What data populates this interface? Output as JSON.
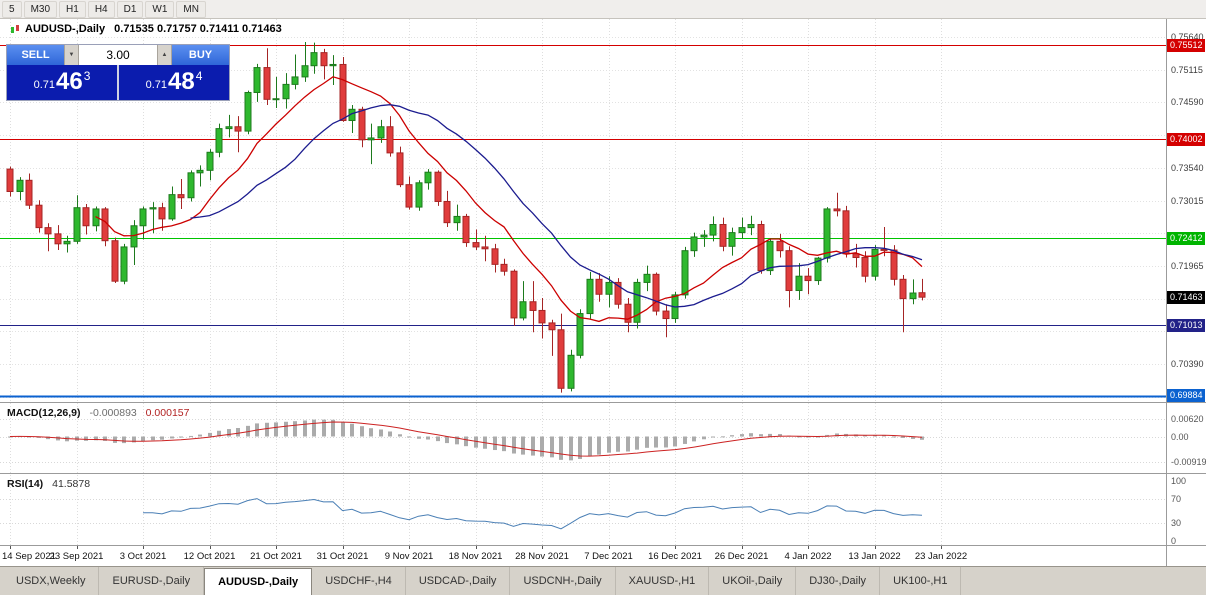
{
  "toolbar": {
    "timeframes": [
      "5",
      "M30",
      "H1",
      "H4",
      "D1",
      "W1",
      "MN"
    ]
  },
  "chart_header": {
    "symbol_title": "AUDUSD-,Daily",
    "ohlc": "0.71535 0.71757 0.71411 0.71463"
  },
  "trade_panel": {
    "sell_label": "SELL",
    "buy_label": "BUY",
    "volume": "3.00",
    "volume_down_glyph": "▼",
    "volume_up_glyph": "▲",
    "bid": "0.71463",
    "ask": "0.71484",
    "sell_price": {
      "prefix": "0.71",
      "big": "46",
      "sup": "3"
    },
    "buy_price": {
      "prefix": "0.71",
      "big": "48",
      "sup": "4"
    }
  },
  "indicators": {
    "macd": {
      "label": "MACD(12,26,9)",
      "value_main": "-0.000893",
      "value_signal": "0.000157",
      "params": {
        "fast": 12,
        "slow": 26,
        "signal": 9
      },
      "axis_labels": [
        {
          "value": 0.0062,
          "text": "0.00620"
        },
        {
          "value": 0,
          "text": "0.00"
        },
        {
          "value": -0.00919,
          "text": "-0.00919"
        }
      ]
    },
    "rsi": {
      "label": "RSI(14)",
      "value": "41.5878",
      "period": 14,
      "levels": [
        70,
        30
      ],
      "axis_labels": [
        {
          "value": 100,
          "text": "100"
        },
        {
          "value": 70,
          "text": "70"
        },
        {
          "value": 30,
          "text": "30"
        },
        {
          "value": 0,
          "text": "0"
        }
      ]
    }
  },
  "price_axis": {
    "ticks": [
      "0.75640",
      "0.75115",
      "0.74590",
      "0.74065",
      "0.73540",
      "0.73015",
      "0.72490",
      "0.71965",
      "0.71440",
      "0.70915",
      "0.70390",
      "0.69865"
    ],
    "badges": [
      {
        "text": "0.75512",
        "price": 0.75512,
        "color": "#d40000"
      },
      {
        "text": "0.74002",
        "price": 0.74002,
        "color": "#d40000"
      },
      {
        "text": "0.72412",
        "price": 0.72412,
        "color": "#00b400"
      },
      {
        "text": "0.71463",
        "price": 0.71463,
        "color": "#000000"
      },
      {
        "text": "0.71013",
        "price": 0.71013,
        "color": "#222288"
      },
      {
        "text": "0.69884",
        "price": 0.69884,
        "color": "#0b62d0"
      }
    ]
  },
  "levels": [
    {
      "price": 0.75512,
      "color": "#d40000",
      "width": 1
    },
    {
      "price": 0.74002,
      "color": "#d40000",
      "width": 1
    },
    {
      "price": 0.72412,
      "color": "#00c400",
      "width": 1
    },
    {
      "price": 0.71013,
      "color": "#222288",
      "width": 1
    },
    {
      "price": 0.69884,
      "color": "#0b62d0",
      "width": 2
    }
  ],
  "chart_data": {
    "type": "candlestick",
    "symbol": "AUDUSD-",
    "timeframe": "Daily",
    "current_bid": 0.71463,
    "current_ask": 0.71484,
    "y_range": [
      0.6978,
      0.7593
    ],
    "label_every": 7,
    "date_labels": [
      "14 Sep 2021",
      "23 Sep 2021",
      "3 Oct 2021",
      "12 Oct 2021",
      "21 Oct 2021",
      "31 Oct 2021",
      "9 Nov 2021",
      "18 Nov 2021",
      "28 Nov 2021",
      "7 Dec 2021",
      "16 Dec 2021",
      "26 Dec 2021",
      "4 Jan 2022",
      "13 Jan 2022",
      "23 Jan 2022"
    ],
    "ma": [
      {
        "period": 10,
        "color": "#cc0000"
      },
      {
        "period": 20,
        "color": "#1c1c8f"
      }
    ],
    "candles": [
      [
        0.7352,
        0.7356,
        0.7308,
        0.7316
      ],
      [
        0.7316,
        0.7339,
        0.7302,
        0.7334
      ],
      [
        0.7334,
        0.7345,
        0.7288,
        0.7294
      ],
      [
        0.7294,
        0.7302,
        0.725,
        0.7258
      ],
      [
        0.7258,
        0.7265,
        0.722,
        0.7248
      ],
      [
        0.7248,
        0.7262,
        0.7222,
        0.7232
      ],
      [
        0.7232,
        0.7245,
        0.7218,
        0.7236
      ],
      [
        0.7236,
        0.731,
        0.7232,
        0.729
      ],
      [
        0.729,
        0.7296,
        0.7247,
        0.7261
      ],
      [
        0.7261,
        0.7292,
        0.7252,
        0.7288
      ],
      [
        0.7288,
        0.7291,
        0.7228,
        0.7237
      ],
      [
        0.7237,
        0.7242,
        0.7169,
        0.7172
      ],
      [
        0.7172,
        0.7232,
        0.7167,
        0.7227
      ],
      [
        0.7227,
        0.727,
        0.7198,
        0.7261
      ],
      [
        0.7261,
        0.7292,
        0.7239,
        0.7288
      ],
      [
        0.7288,
        0.7299,
        0.7249,
        0.729
      ],
      [
        0.729,
        0.7298,
        0.7253,
        0.7272
      ],
      [
        0.7272,
        0.7324,
        0.7269,
        0.7311
      ],
      [
        0.7311,
        0.7336,
        0.7288,
        0.7306
      ],
      [
        0.7306,
        0.735,
        0.73,
        0.7346
      ],
      [
        0.7346,
        0.7358,
        0.7324,
        0.735
      ],
      [
        0.735,
        0.7384,
        0.7334,
        0.7379
      ],
      [
        0.7379,
        0.7425,
        0.7371,
        0.7417
      ],
      [
        0.7417,
        0.7439,
        0.7403,
        0.742
      ],
      [
        0.742,
        0.7437,
        0.7379,
        0.7413
      ],
      [
        0.7413,
        0.7478,
        0.7408,
        0.7475
      ],
      [
        0.7475,
        0.7521,
        0.746,
        0.7515
      ],
      [
        0.7515,
        0.7546,
        0.7455,
        0.7464
      ],
      [
        0.7464,
        0.75,
        0.745,
        0.7465
      ],
      [
        0.7465,
        0.7506,
        0.7449,
        0.7488
      ],
      [
        0.7488,
        0.7536,
        0.748,
        0.75
      ],
      [
        0.75,
        0.7556,
        0.7492,
        0.7518
      ],
      [
        0.7518,
        0.7555,
        0.7505,
        0.7539
      ],
      [
        0.7539,
        0.7545,
        0.7496,
        0.7518
      ],
      [
        0.7518,
        0.7535,
        0.7487,
        0.752
      ],
      [
        0.752,
        0.7532,
        0.7428,
        0.743
      ],
      [
        0.743,
        0.7455,
        0.741,
        0.7448
      ],
      [
        0.7448,
        0.7452,
        0.7387,
        0.7399
      ],
      [
        0.7399,
        0.7425,
        0.736,
        0.7402
      ],
      [
        0.7402,
        0.7431,
        0.7394,
        0.742
      ],
      [
        0.742,
        0.7437,
        0.7372,
        0.7378
      ],
      [
        0.7378,
        0.7388,
        0.7323,
        0.7327
      ],
      [
        0.7327,
        0.734,
        0.7287,
        0.7291
      ],
      [
        0.7291,
        0.7334,
        0.7285,
        0.733
      ],
      [
        0.733,
        0.7352,
        0.7319,
        0.7347
      ],
      [
        0.7347,
        0.735,
        0.7293,
        0.73
      ],
      [
        0.73,
        0.7317,
        0.7259,
        0.7266
      ],
      [
        0.7266,
        0.7295,
        0.7253,
        0.7276
      ],
      [
        0.7276,
        0.728,
        0.7227,
        0.7234
      ],
      [
        0.7234,
        0.7255,
        0.7222,
        0.7227
      ],
      [
        0.7227,
        0.7245,
        0.7204,
        0.7224
      ],
      [
        0.7224,
        0.7232,
        0.7186,
        0.7199
      ],
      [
        0.7199,
        0.7208,
        0.7181,
        0.7188
      ],
      [
        0.7188,
        0.7191,
        0.71,
        0.7113
      ],
      [
        0.7113,
        0.7172,
        0.7109,
        0.7139
      ],
      [
        0.7139,
        0.7172,
        0.709,
        0.7125
      ],
      [
        0.7125,
        0.7145,
        0.708,
        0.7105
      ],
      [
        0.7105,
        0.711,
        0.7052,
        0.7094
      ],
      [
        0.7094,
        0.712,
        0.6993,
        0.7
      ],
      [
        0.7,
        0.7062,
        0.6995,
        0.7053
      ],
      [
        0.7053,
        0.7127,
        0.7048,
        0.712
      ],
      [
        0.712,
        0.7187,
        0.7112,
        0.7175
      ],
      [
        0.7175,
        0.7185,
        0.7139,
        0.7151
      ],
      [
        0.7151,
        0.718,
        0.713,
        0.717
      ],
      [
        0.717,
        0.7177,
        0.7128,
        0.7135
      ],
      [
        0.7135,
        0.7145,
        0.709,
        0.7106
      ],
      [
        0.7106,
        0.7176,
        0.7096,
        0.717
      ],
      [
        0.717,
        0.7197,
        0.7156,
        0.7183
      ],
      [
        0.7183,
        0.7186,
        0.7117,
        0.7124
      ],
      [
        0.7124,
        0.7135,
        0.7082,
        0.7112
      ],
      [
        0.7112,
        0.7155,
        0.7105,
        0.715
      ],
      [
        0.715,
        0.7227,
        0.7144,
        0.7221
      ],
      [
        0.7221,
        0.725,
        0.7211,
        0.7243
      ],
      [
        0.7243,
        0.7254,
        0.7227,
        0.7246
      ],
      [
        0.7246,
        0.7276,
        0.7236,
        0.7263
      ],
      [
        0.7263,
        0.7274,
        0.722,
        0.7228
      ],
      [
        0.7228,
        0.7258,
        0.7213,
        0.725
      ],
      [
        0.725,
        0.7274,
        0.724,
        0.7258
      ],
      [
        0.7258,
        0.7277,
        0.7246,
        0.7263
      ],
      [
        0.7263,
        0.7269,
        0.7184,
        0.7189
      ],
      [
        0.7189,
        0.7241,
        0.7182,
        0.7236
      ],
      [
        0.7236,
        0.7248,
        0.721,
        0.7221
      ],
      [
        0.7221,
        0.7228,
        0.713,
        0.7157
      ],
      [
        0.7157,
        0.7201,
        0.7142,
        0.718
      ],
      [
        0.718,
        0.7193,
        0.7151,
        0.7173
      ],
      [
        0.7173,
        0.7211,
        0.7166,
        0.7209
      ],
      [
        0.7209,
        0.7291,
        0.7202,
        0.7288
      ],
      [
        0.7288,
        0.7314,
        0.7276,
        0.7285
      ],
      [
        0.7285,
        0.7293,
        0.721,
        0.7216
      ],
      [
        0.7216,
        0.7232,
        0.7194,
        0.721
      ],
      [
        0.721,
        0.722,
        0.717,
        0.718
      ],
      [
        0.718,
        0.723,
        0.7173,
        0.7223
      ],
      [
        0.7223,
        0.7259,
        0.7212,
        0.7222
      ],
      [
        0.7222,
        0.723,
        0.7165,
        0.7175
      ],
      [
        0.7175,
        0.7182,
        0.709,
        0.7144
      ],
      [
        0.7144,
        0.7175,
        0.7135,
        0.7153
      ],
      [
        0.71535,
        0.71757,
        0.71411,
        0.71463
      ]
    ]
  },
  "tabs": [
    "USDX,Weekly",
    "EURUSD-,Daily",
    "AUDUSD-,Daily",
    "USDCHF-,H4",
    "USDCAD-,Daily",
    "USDCNH-,Daily",
    "XAUUSD-,H1",
    "UKOil-,Daily",
    "DJ30-,Daily",
    "UK100-,H1"
  ],
  "active_tab": "AUDUSD-,Daily"
}
